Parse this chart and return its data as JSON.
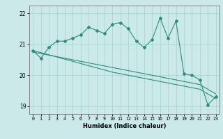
{
  "xlabel": "Humidex (Indice chaleur)",
  "x": [
    0,
    1,
    2,
    3,
    4,
    5,
    6,
    7,
    8,
    9,
    10,
    11,
    12,
    13,
    14,
    15,
    16,
    17,
    18,
    19,
    20,
    21,
    22,
    23
  ],
  "line1": [
    20.8,
    20.55,
    20.9,
    21.1,
    21.1,
    21.2,
    21.3,
    21.55,
    21.45,
    21.35,
    21.65,
    21.7,
    21.5,
    21.1,
    20.9,
    21.15,
    21.85,
    21.2,
    21.75,
    20.05,
    20.0,
    19.85,
    19.05,
    19.3
  ],
  "line2": [
    20.8,
    20.73,
    20.66,
    20.59,
    20.52,
    20.45,
    20.38,
    20.31,
    20.24,
    20.17,
    20.1,
    20.05,
    20.0,
    19.95,
    19.9,
    19.85,
    19.8,
    19.75,
    19.7,
    19.65,
    19.6,
    19.55,
    19.4,
    19.25
  ],
  "line3": [
    20.75,
    20.7,
    20.65,
    20.6,
    20.55,
    20.5,
    20.45,
    20.4,
    20.35,
    20.3,
    20.25,
    20.2,
    20.15,
    20.1,
    20.05,
    20.0,
    19.95,
    19.9,
    19.85,
    19.8,
    19.75,
    19.7,
    19.55,
    19.4
  ],
  "color": "#2d8b79",
  "bg_color": "#cce9e9",
  "grid_color": "#aad4d4",
  "ylim": [
    18.75,
    22.25
  ],
  "yticks": [
    19,
    20,
    21,
    22
  ],
  "xlim": [
    -0.5,
    23.5
  ],
  "xticks": [
    0,
    1,
    2,
    3,
    4,
    5,
    6,
    7,
    8,
    9,
    10,
    11,
    12,
    13,
    14,
    15,
    16,
    17,
    18,
    19,
    20,
    21,
    22,
    23
  ]
}
